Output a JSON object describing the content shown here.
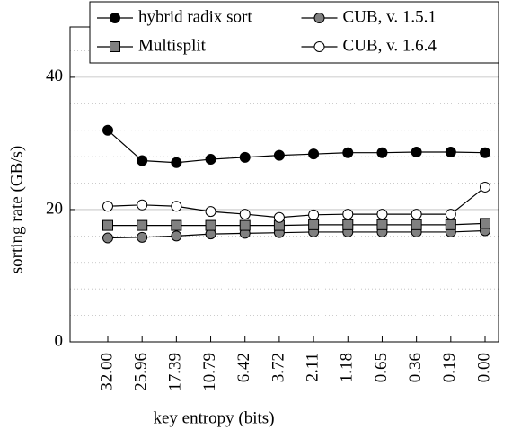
{
  "chart_data": {
    "type": "line",
    "x_label": "key entropy (bits)",
    "y_label": "sorting rate (GB/s)",
    "categories": [
      "32.00",
      "25.96",
      "17.39",
      "10.79",
      "6.42",
      "3.72",
      "2.11",
      "1.18",
      "0.65",
      "0.36",
      "0.19",
      "0.00"
    ],
    "series": [
      {
        "name": "hybrid radix sort",
        "color": "#000000",
        "marker": "circle",
        "values": [
          32.0,
          27.4,
          27.1,
          27.6,
          27.9,
          28.2,
          28.4,
          28.6,
          28.6,
          28.7,
          28.7,
          28.6
        ]
      },
      {
        "name": "CUB, v. 1.5.1",
        "color": "#808080",
        "marker": "circle",
        "values": [
          15.7,
          15.8,
          16.0,
          16.3,
          16.4,
          16.5,
          16.6,
          16.6,
          16.6,
          16.6,
          16.6,
          16.8
        ]
      },
      {
        "name": "Multisplit",
        "color": "#808080",
        "marker": "square",
        "values": [
          17.6,
          17.6,
          17.6,
          17.6,
          17.6,
          17.6,
          17.7,
          17.7,
          17.7,
          17.7,
          17.7,
          17.9
        ]
      },
      {
        "name": "CUB, v. 1.6.4",
        "color": "#ffffff",
        "marker": "circle",
        "values": [
          20.5,
          20.7,
          20.5,
          19.7,
          19.3,
          18.8,
          19.2,
          19.3,
          19.3,
          19.3,
          19.3,
          23.4
        ]
      }
    ],
    "ylim": [
      0,
      47.6
    ],
    "yticks": [
      0,
      20,
      40
    ],
    "yminor_ticks": [
      4,
      8,
      12,
      16,
      24,
      28,
      32,
      36,
      44
    ],
    "grid": true,
    "legend_position": "top",
    "legend_columns": 2
  }
}
